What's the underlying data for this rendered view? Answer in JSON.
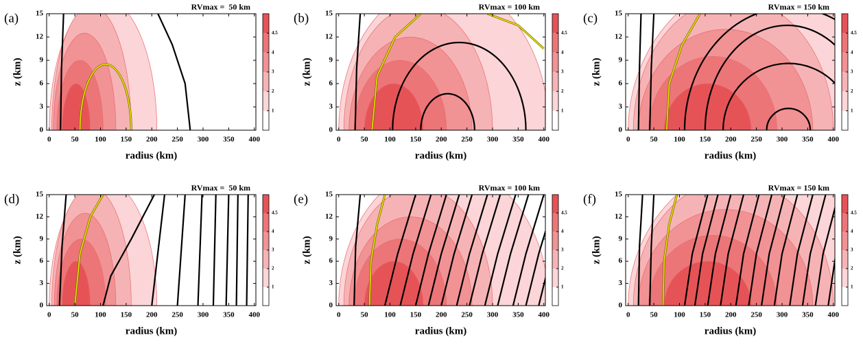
{
  "chart_data": [
    {
      "type": "contour",
      "label": "(a)",
      "title": "RVmax =  50 km",
      "xlabel": "radius (km)",
      "ylabel": "z (km)",
      "xlim": [
        -5,
        403
      ],
      "ylim": [
        0,
        15
      ],
      "xticks": [
        0,
        50,
        100,
        150,
        200,
        250,
        300,
        350,
        400
      ],
      "yticks": [
        0,
        3,
        6,
        9,
        12,
        15
      ],
      "levels": [
        1,
        2,
        3,
        4,
        4.5
      ],
      "colors": [
        "#ffffff",
        "#fbd5d7",
        "#f6b3b5",
        "#f19294",
        "#ec7578",
        "#e65357"
      ],
      "contour_color": "#000000",
      "highlight_color": "#f2e200",
      "fills": [
        [
          0,
          210,
          17
        ],
        [
          5,
          160,
          16
        ],
        [
          8,
          130,
          12.5
        ],
        [
          15,
          105,
          9
        ],
        [
          25,
          80,
          6
        ]
      ],
      "black": {
        "arches": [],
        "lines": [
          {
            "x": [
              22,
              24,
              28
            ],
            "z": [
              0,
              8,
              15
            ]
          },
          {
            "x": [
              275,
              265,
              240,
              212
            ],
            "z": [
              0,
              6,
              11,
              15
            ]
          }
        ]
      },
      "yellow": {
        "arches": [
          [
            60,
            160,
            8.5
          ]
        ],
        "lines": []
      }
    },
    {
      "type": "contour",
      "label": "(b)",
      "title": "RVmax = 100 km",
      "xlabel": "radius (km)",
      "ylabel": "z (km)",
      "xlim": [
        -5,
        403
      ],
      "ylim": [
        0,
        15
      ],
      "xticks": [
        0,
        50,
        100,
        150,
        200,
        250,
        300,
        350,
        400
      ],
      "yticks": [
        0,
        3,
        6,
        9,
        12,
        15
      ],
      "levels": [
        1,
        2,
        3,
        4,
        4.5
      ],
      "colors": [
        "#ffffff",
        "#fbd5d7",
        "#f6b3b5",
        "#f19294",
        "#ec7578",
        "#e65357"
      ],
      "contour_color": "#000000",
      "highlight_color": "#f2e200",
      "fills": [
        [
          0,
          410,
          19
        ],
        [
          10,
          300,
          16
        ],
        [
          20,
          260,
          12
        ],
        [
          30,
          210,
          9
        ],
        [
          50,
          165,
          6
        ]
      ],
      "black": {
        "arches": [
          [
            105,
            365,
            11.3
          ],
          [
            160,
            265,
            4.7
          ]
        ],
        "lines": [
          {
            "x": [
              32,
              35,
              42
            ],
            "z": [
              0,
              8,
              15
            ]
          }
        ]
      },
      "yellow": {
        "arches": [],
        "lines": [
          {
            "x": [
              65,
              75,
              110,
              160
            ],
            "z": [
              0,
              7,
              12,
              15
            ]
          },
          {
            "x": [
              290,
              350,
              400
            ],
            "z": [
              15,
              13.5,
              10.5
            ]
          }
        ]
      }
    },
    {
      "type": "contour",
      "label": "(c)",
      "title": "RVmax = 150 km",
      "xlabel": "radius (km)",
      "ylabel": "z (km)",
      "xlim": [
        -5,
        403
      ],
      "ylim": [
        0,
        15
      ],
      "xticks": [
        0,
        50,
        100,
        150,
        200,
        250,
        300,
        350,
        400
      ],
      "yticks": [
        0,
        3,
        6,
        9,
        12,
        15
      ],
      "levels": [
        1,
        2,
        3,
        4,
        4.5
      ],
      "colors": [
        "#ffffff",
        "#fbd5d7",
        "#f6b3b5",
        "#f19294",
        "#ec7578",
        "#e65357"
      ],
      "contour_color": "#000000",
      "highlight_color": "#f2e200",
      "fills": [
        [
          0,
          560,
          20
        ],
        [
          10,
          400,
          17
        ],
        [
          20,
          360,
          13
        ],
        [
          40,
          290,
          9.5
        ],
        [
          70,
          240,
          6
        ]
      ],
      "black": {
        "arches": [
          [
            110,
            520,
            15.8
          ],
          [
            150,
            470,
            13.5
          ],
          [
            185,
            440,
            8.6
          ],
          [
            270,
            355,
            2.8
          ]
        ],
        "lines": [
          {
            "x": [
              20,
              22,
              25
            ],
            "z": [
              0,
              8,
              15
            ]
          },
          {
            "x": [
              42,
              45,
              50
            ],
            "z": [
              0,
              8,
              15
            ]
          }
        ]
      },
      "yellow": {
        "arches": [],
        "lines": [
          {
            "x": [
              75,
              80,
              105,
              140
            ],
            "z": [
              0,
              6,
              11,
              15
            ]
          }
        ]
      }
    },
    {
      "type": "contour",
      "label": "(d)",
      "title": "RVmax =  50 km",
      "xlabel": "radius (km)",
      "ylabel": "z (km)",
      "xlim": [
        -5,
        403
      ],
      "ylim": [
        0,
        15
      ],
      "xticks": [
        0,
        50,
        100,
        150,
        200,
        250,
        300,
        350,
        400
      ],
      "yticks": [
        0,
        3,
        6,
        9,
        12,
        15
      ],
      "levels": [
        1,
        2,
        3,
        4,
        4.5
      ],
      "colors": [
        "#ffffff",
        "#fbd5d7",
        "#f6b3b5",
        "#f19294",
        "#ec7578",
        "#e65357"
      ],
      "contour_color": "#000000",
      "highlight_color": "#f2e200",
      "fills": [
        [
          0,
          210,
          17
        ],
        [
          5,
          160,
          16
        ],
        [
          10,
          130,
          12.5
        ],
        [
          15,
          110,
          9
        ],
        [
          25,
          80,
          6
        ]
      ],
      "black": {
        "arches": [],
        "lines": [
          {
            "x": [
              20,
              25,
              33
            ],
            "z": [
              0,
              8,
              15
            ]
          },
          {
            "x": [
              105,
              120,
              160,
              205
            ],
            "z": [
              0,
              4,
              9,
              15
            ]
          },
          {
            "x": [
              200,
              225
            ],
            "z": [
              0,
              15
            ]
          },
          {
            "x": [
              250,
              265
            ],
            "z": [
              0,
              15
            ]
          },
          {
            "x": [
              290,
              298
            ],
            "z": [
              0,
              15
            ]
          },
          {
            "x": [
              320,
              325
            ],
            "z": [
              0,
              15
            ]
          },
          {
            "x": [
              345,
              350
            ],
            "z": [
              0,
              15
            ]
          },
          {
            "x": [
              365,
              368
            ],
            "z": [
              0,
              15
            ]
          },
          {
            "x": [
              385,
              388
            ],
            "z": [
              0,
              15
            ]
          }
        ]
      },
      "yellow": {
        "arches": [],
        "lines": [
          {
            "x": [
              50,
              60,
              80,
              105
            ],
            "z": [
              0,
              7,
              12,
              15
            ]
          }
        ]
      }
    },
    {
      "type": "contour",
      "label": "(e)",
      "title": "RVmax = 100 km",
      "xlabel": "radius (km)",
      "ylabel": "z (km)",
      "xlim": [
        -5,
        403
      ],
      "ylim": [
        0,
        15
      ],
      "xticks": [
        0,
        50,
        100,
        150,
        200,
        250,
        300,
        350,
        400
      ],
      "yticks": [
        0,
        3,
        6,
        9,
        12,
        15
      ],
      "levels": [
        1,
        2,
        3,
        4,
        4.5
      ],
      "colors": [
        "#ffffff",
        "#fbd5d7",
        "#f6b3b5",
        "#f19294",
        "#ec7578",
        "#e65357"
      ],
      "contour_color": "#000000",
      "highlight_color": "#f2e200",
      "fills": [
        [
          0,
          410,
          19
        ],
        [
          10,
          300,
          16
        ],
        [
          20,
          260,
          12
        ],
        [
          30,
          210,
          9
        ],
        [
          50,
          165,
          6
        ]
      ],
      "black": {
        "arches": [],
        "lines": [
          {
            "x": [
              30,
              33,
              42
            ],
            "z": [
              0,
              8,
              15
            ]
          },
          {
            "x": [
              90,
              115,
              150
            ],
            "z": [
              0,
              7,
              15
            ]
          },
          {
            "x": [
              120,
              145,
              180
            ],
            "z": [
              0,
              7,
              15
            ]
          },
          {
            "x": [
              150,
              175,
              210
            ],
            "z": [
              0,
              7,
              15
            ]
          },
          {
            "x": [
              175,
              200,
              235
            ],
            "z": [
              0,
              7,
              15
            ]
          },
          {
            "x": [
              200,
              225,
              260
            ],
            "z": [
              0,
              7,
              15
            ]
          },
          {
            "x": [
              230,
              255,
              290
            ],
            "z": [
              0,
              7,
              15
            ]
          },
          {
            "x": [
              255,
              280,
              315
            ],
            "z": [
              0,
              7,
              15
            ]
          },
          {
            "x": [
              285,
              310,
              345
            ],
            "z": [
              0,
              7,
              15
            ]
          },
          {
            "x": [
              310,
              335,
              370
            ],
            "z": [
              0,
              7,
              15
            ]
          },
          {
            "x": [
              340,
              365,
              400
            ],
            "z": [
              0,
              7,
              15
            ]
          },
          {
            "x": [
              365,
              390,
              425
            ],
            "z": [
              0,
              7,
              15
            ]
          },
          {
            "x": [
              390,
              415,
              450
            ],
            "z": [
              0,
              7,
              15
            ]
          }
        ]
      },
      "yellow": {
        "arches": [],
        "lines": [
          {
            "x": [
              60,
              63,
              75,
              90
            ],
            "z": [
              0,
              6,
              11,
              15
            ]
          }
        ]
      }
    },
    {
      "type": "contour",
      "label": "(f)",
      "title": "RVmax = 150 km",
      "xlabel": "radius (km)",
      "ylabel": "z (km)",
      "xlim": [
        -5,
        403
      ],
      "ylim": [
        0,
        15
      ],
      "xticks": [
        0,
        50,
        100,
        150,
        200,
        250,
        300,
        350,
        400
      ],
      "yticks": [
        0,
        3,
        6,
        9,
        12,
        15
      ],
      "levels": [
        1,
        2,
        3,
        4,
        4.5
      ],
      "colors": [
        "#ffffff",
        "#fbd5d7",
        "#f6b3b5",
        "#f19294",
        "#ec7578",
        "#e65357"
      ],
      "contour_color": "#000000",
      "highlight_color": "#f2e200",
      "fills": [
        [
          0,
          560,
          20
        ],
        [
          10,
          400,
          17
        ],
        [
          20,
          360,
          13
        ],
        [
          40,
          290,
          9.5
        ],
        [
          70,
          240,
          6
        ]
      ],
      "black": {
        "arches": [],
        "lines": [
          {
            "x": [
              20,
              22,
              28
            ],
            "z": [
              0,
              8,
              15
            ]
          },
          {
            "x": [
              42,
              45,
              50
            ],
            "z": [
              0,
              8,
              15
            ]
          },
          {
            "x": [
              110,
              125,
              155
            ],
            "z": [
              0,
              7,
              15
            ]
          },
          {
            "x": [
              130,
              145,
              175
            ],
            "z": [
              0,
              7,
              15
            ]
          },
          {
            "x": [
              155,
              170,
              200
            ],
            "z": [
              0,
              7,
              15
            ]
          },
          {
            "x": [
              180,
              195,
              225
            ],
            "z": [
              0,
              7,
              15
            ]
          },
          {
            "x": [
              210,
              225,
              255
            ],
            "z": [
              0,
              7,
              15
            ]
          },
          {
            "x": [
              235,
              250,
              280
            ],
            "z": [
              0,
              7,
              15
            ]
          },
          {
            "x": [
              260,
              275,
              305
            ],
            "z": [
              0,
              7,
              15
            ]
          },
          {
            "x": [
              285,
              300,
              330
            ],
            "z": [
              0,
              7,
              15
            ]
          },
          {
            "x": [
              315,
              330,
              360
            ],
            "z": [
              0,
              7,
              15
            ]
          },
          {
            "x": [
              340,
              355,
              385
            ],
            "z": [
              0,
              7,
              15
            ]
          },
          {
            "x": [
              365,
              380,
              410
            ],
            "z": [
              0,
              7,
              15
            ]
          },
          {
            "x": [
              390,
              405,
              435
            ],
            "z": [
              0,
              7,
              15
            ]
          }
        ]
      },
      "yellow": {
        "arches": [],
        "lines": [
          {
            "x": [
              68,
              70,
              80,
              95
            ],
            "z": [
              0,
              6,
              11,
              15
            ]
          }
        ]
      }
    }
  ]
}
